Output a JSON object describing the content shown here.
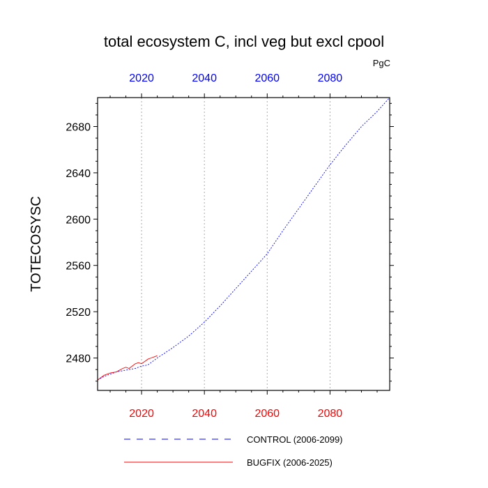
{
  "chart_data": {
    "type": "line",
    "title": "total ecosystem C, incl veg but excl cpool",
    "units": "PgC",
    "ylabel": "TOTECOSYSC",
    "xlim": [
      2006,
      2099
    ],
    "ylim": [
      2452,
      2705
    ],
    "x_ticks": [
      2020,
      2040,
      2060,
      2080
    ],
    "y_ticks": [
      2480,
      2520,
      2560,
      2600,
      2640,
      2680
    ],
    "colors": {
      "bottom_ticks": "#ff0000",
      "top_ticks": "#0000ff",
      "control": "#0000ff",
      "bugfix": "#ff0000",
      "grid": "#aaaaaa"
    },
    "grid": "vertical dotted at major x ticks",
    "series": [
      {
        "name": "CONTROL (2006-2099)",
        "style": "dashed",
        "x": [
          2006,
          2008,
          2010,
          2012,
          2014,
          2016,
          2018,
          2020,
          2022,
          2025,
          2030,
          2035,
          2040,
          2045,
          2050,
          2055,
          2060,
          2065,
          2070,
          2075,
          2080,
          2085,
          2090,
          2095,
          2099
        ],
        "y": [
          2461,
          2464,
          2466,
          2468,
          2469,
          2470,
          2471,
          2473,
          2474,
          2480,
          2489,
          2499,
          2511,
          2525,
          2540,
          2555,
          2570,
          2590,
          2609,
          2628,
          2647,
          2664,
          2680,
          2693,
          2705
        ]
      },
      {
        "name": "BUGFIX (2006-2025)",
        "style": "solid",
        "x": [
          2006,
          2008,
          2010,
          2012,
          2014,
          2015,
          2016,
          2017,
          2018,
          2019,
          2020,
          2021,
          2022,
          2023,
          2024,
          2025
        ],
        "y": [
          2461,
          2465,
          2467,
          2468,
          2471,
          2472,
          2471,
          2473,
          2475,
          2476,
          2475,
          2477,
          2479,
          2480,
          2481,
          2482
        ]
      }
    ]
  }
}
